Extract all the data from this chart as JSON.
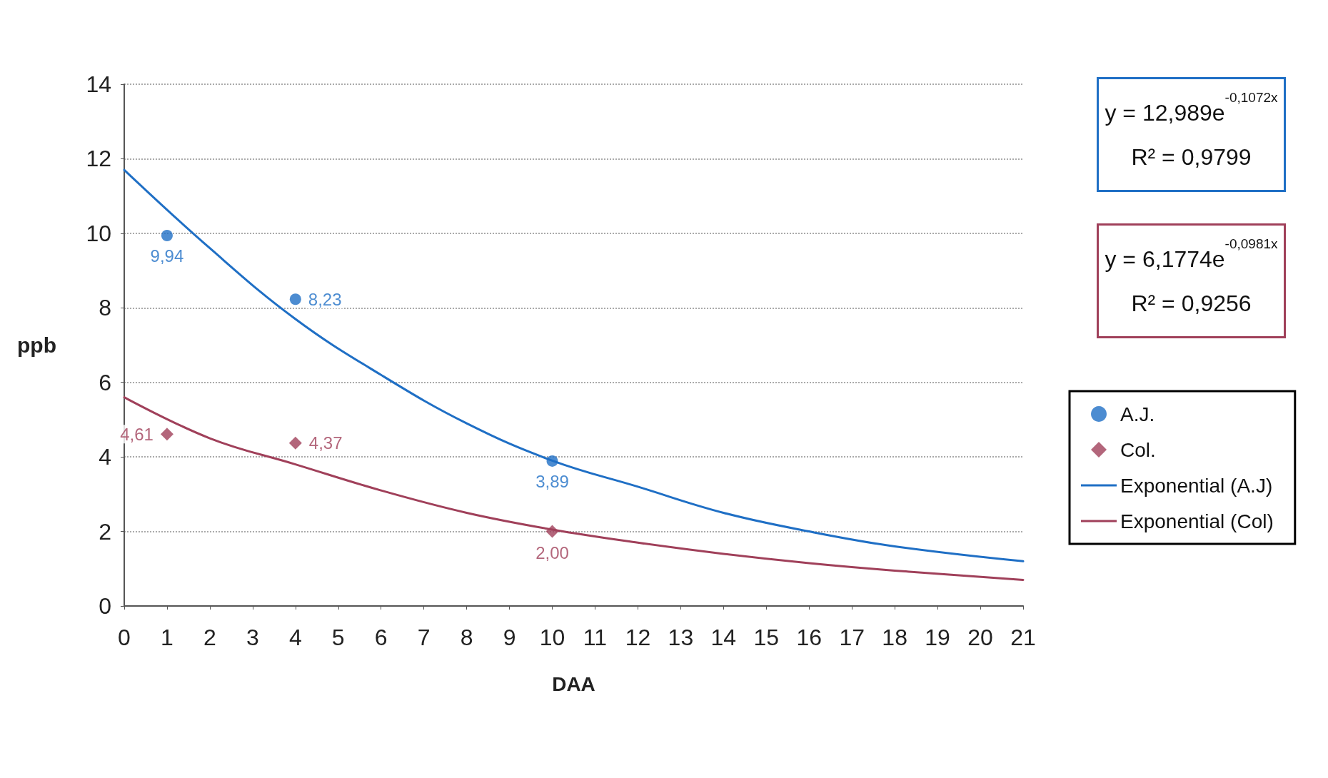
{
  "chart_data": {
    "type": "scatter",
    "xlabel": "DAA",
    "ylabel": "ppb",
    "xlim": [
      0,
      21
    ],
    "xticks": [
      0,
      1,
      2,
      3,
      4,
      5,
      6,
      7,
      8,
      9,
      10,
      11,
      12,
      13,
      14,
      15,
      16,
      17,
      18,
      19,
      20,
      21
    ],
    "ylim": [
      0,
      14
    ],
    "yticks": [
      0,
      2,
      4,
      6,
      8,
      10,
      12,
      14
    ],
    "grid": "y",
    "legend": "right",
    "line_style": "solid",
    "series": [
      {
        "name": "A.J.",
        "marker": "circle",
        "color": "#1f6fc5",
        "x": [
          1,
          4,
          10
        ],
        "values": [
          9.94,
          8.23,
          3.89
        ],
        "value_labels": [
          "9,94",
          "8,23",
          "3,89"
        ]
      },
      {
        "name": "Col.",
        "marker": "diamond",
        "color": "#a0405a",
        "x": [
          1,
          4,
          10
        ],
        "values": [
          4.61,
          4.37,
          2.0
        ],
        "value_labels": [
          "4,61",
          "4,37",
          "2,00"
        ]
      },
      {
        "name": "Exponential (A.J)",
        "type": "line",
        "marker": "none",
        "color": "#1f6fc5",
        "x": [
          0,
          2,
          4,
          6,
          8,
          10,
          12,
          14,
          16,
          18,
          21
        ],
        "values": [
          11.7,
          9.6,
          7.7,
          6.2,
          4.9,
          3.9,
          3.2,
          2.5,
          2.0,
          1.6,
          1.2
        ]
      },
      {
        "name": "Exponential (Col)",
        "type": "line",
        "marker": "none",
        "color": "#a0405a",
        "x": [
          0,
          2,
          4,
          6,
          8,
          10,
          12,
          14,
          16,
          18,
          21
        ],
        "values": [
          5.6,
          4.5,
          3.8,
          3.1,
          2.5,
          2.05,
          1.7,
          1.4,
          1.15,
          0.95,
          0.7
        ]
      }
    ],
    "annotations": [
      "y = 12,989e$^{-0,1072x}$\nR² = 0,9799",
      "y = 6,1774e$^{-0,0981x}$\nR² = 0,9256"
    ]
  }
}
